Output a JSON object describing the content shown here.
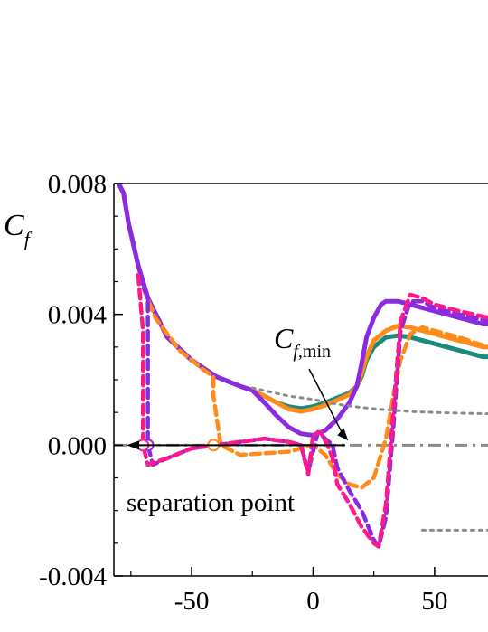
{
  "chart_data": {
    "type": "line",
    "ylabel": {
      "main": "C",
      "sub": "f"
    },
    "xlim": [
      -82,
      72
    ],
    "ylim": [
      -0.004,
      0.008
    ],
    "x_ticks": [
      "-50",
      "0",
      "50"
    ],
    "x_tick_values": [
      -50,
      0,
      50
    ],
    "y_ticks": [
      "0.008",
      "0.004",
      "0.000",
      "-0.004"
    ],
    "y_tick_values": [
      0.008,
      0.004,
      0.0,
      -0.004
    ],
    "annotations": {
      "cf_min": {
        "main": "C",
        "sub_italic": "f",
        "sub": ",min",
        "x": 10,
        "y": 0.0
      },
      "separation": {
        "text": "separation point",
        "x": -68,
        "y": 0.0
      }
    },
    "reference_lines": [
      {
        "name": "zero",
        "style": "dashdot",
        "color": "#8a8a8a",
        "x": [
          -82,
          72
        ],
        "y": [
          0.0,
          0.0
        ]
      }
    ],
    "series": [
      {
        "style": "solid",
        "color": "#1a8a7f",
        "x": [
          -80,
          -78,
          -76,
          -72,
          -68,
          -60,
          -50,
          -40,
          -30,
          -25,
          -20,
          -15,
          -10,
          -5,
          0,
          5,
          10,
          15,
          18,
          20,
          22,
          25,
          30,
          35,
          40,
          45,
          50,
          55,
          60,
          65,
          70,
          72
        ],
        "y": [
          0.008,
          0.0077,
          0.0068,
          0.0055,
          0.0045,
          0.0033,
          0.0026,
          0.0021,
          0.0018,
          0.00168,
          0.0015,
          0.0013,
          0.00118,
          0.00112,
          0.00118,
          0.0013,
          0.00145,
          0.0016,
          0.0018,
          0.0021,
          0.0026,
          0.003,
          0.0033,
          0.00335,
          0.0033,
          0.0032,
          0.0031,
          0.003,
          0.0029,
          0.0028,
          0.0027,
          0.0027
        ]
      },
      {
        "style": "solid",
        "color": "#ff8c1a",
        "x": [
          -80,
          -78,
          -76,
          -72,
          -68,
          -60,
          -50,
          -40,
          -30,
          -25,
          -20,
          -15,
          -10,
          -5,
          0,
          5,
          10,
          15,
          18,
          20,
          22,
          25,
          30,
          35,
          40,
          45,
          50,
          55,
          60,
          65,
          70,
          72
        ],
        "y": [
          0.008,
          0.0077,
          0.0068,
          0.0055,
          0.0045,
          0.0033,
          0.0026,
          0.0021,
          0.0018,
          0.00168,
          0.0015,
          0.0013,
          0.0011,
          0.00103,
          0.0011,
          0.00122,
          0.00138,
          0.00155,
          0.0018,
          0.0022,
          0.0027,
          0.0032,
          0.0035,
          0.00365,
          0.0036,
          0.0035,
          0.0034,
          0.0033,
          0.0032,
          0.0031,
          0.003,
          0.003
        ]
      },
      {
        "style": "solid",
        "color": "#8a2be2",
        "x": [
          -80,
          -78,
          -76,
          -72,
          -68,
          -60,
          -50,
          -40,
          -30,
          -25,
          -20,
          -15,
          -10,
          -5,
          0,
          5,
          10,
          15,
          18,
          20,
          22,
          25,
          28,
          30,
          35,
          40,
          45,
          50,
          55,
          60,
          65,
          70,
          72
        ],
        "y": [
          0.008,
          0.0077,
          0.0068,
          0.0055,
          0.0045,
          0.0033,
          0.0026,
          0.0021,
          0.0018,
          0.00168,
          0.0013,
          0.0009,
          0.00055,
          0.00035,
          0.0003,
          0.00045,
          0.0008,
          0.0013,
          0.0018,
          0.0025,
          0.0033,
          0.0039,
          0.0043,
          0.0044,
          0.0044,
          0.0043,
          0.0042,
          0.0041,
          0.004,
          0.0039,
          0.0038,
          0.0037,
          0.0037
        ]
      },
      {
        "style": "dashed",
        "color": "#ff8c1a",
        "x": [
          -72,
          -65,
          -55,
          -45,
          -41,
          -41,
          -38,
          -30,
          -20,
          -10,
          0,
          5,
          10,
          15,
          20,
          25,
          30,
          33,
          36,
          40,
          45,
          50,
          60,
          72
        ],
        "y": [
          0.0052,
          0.0039,
          0.0029,
          0.0023,
          0.0021,
          0.0015,
          0.0,
          -0.0003,
          -0.00025,
          -0.0002,
          0.0,
          -0.0003,
          -0.0009,
          -0.0012,
          -0.0013,
          -0.001,
          0.0002,
          0.0015,
          0.0026,
          0.0034,
          0.0036,
          0.0035,
          0.0033,
          0.003
        ]
      },
      {
        "style": "dashed",
        "color": "#8a2be2",
        "x": [
          -72,
          -68,
          -68,
          -66,
          -60,
          -50,
          -40,
          -30,
          -20,
          -10,
          -5,
          -2,
          2,
          5,
          8,
          10,
          15,
          20,
          25,
          27,
          30,
          33,
          36,
          40,
          45,
          50,
          60,
          72
        ],
        "y": [
          0.0052,
          0.0045,
          0.0,
          -0.0006,
          -0.0004,
          -0.0001,
          0.0,
          0.0001,
          0.0002,
          0.0001,
          0.0,
          -0.0008,
          0.0004,
          0.0002,
          0.0,
          -0.0007,
          -0.0014,
          -0.002,
          -0.0029,
          -0.0031,
          -0.0022,
          0.0005,
          0.0035,
          0.0044,
          0.0044,
          0.0042,
          0.004,
          0.0038
        ]
      },
      {
        "style": "dashed",
        "color": "#ff1a8c",
        "x": [
          -72,
          -70,
          -70,
          -68,
          -60,
          -50,
          -40,
          -30,
          -20,
          -10,
          -5,
          -2,
          0,
          3,
          6,
          8,
          10,
          15,
          20,
          25,
          27,
          30,
          33,
          36,
          40,
          45,
          50,
          60,
          72
        ],
        "y": [
          0.0052,
          0.0035,
          0.0,
          -0.0006,
          -0.0004,
          -0.0001,
          0.0,
          0.0001,
          0.0002,
          0.0001,
          0.0,
          -0.0009,
          0.0003,
          0.0004,
          0.0,
          -0.0004,
          -0.0012,
          -0.0018,
          -0.0025,
          -0.003,
          -0.0031,
          -0.0018,
          0.001,
          0.0038,
          0.0046,
          0.0045,
          0.0043,
          0.0041,
          0.0039
        ]
      },
      {
        "style": "dotted",
        "color": "#8a8a8a",
        "x": [
          -25,
          -10,
          0,
          10,
          20,
          30,
          40,
          50,
          60,
          72
        ],
        "y": [
          0.00175,
          0.0015,
          0.0014,
          0.00125,
          0.00115,
          0.00108,
          0.00103,
          0.001,
          0.00098,
          0.00096
        ]
      },
      {
        "style": "dotted",
        "color": "#8a8a8a",
        "x": [
          45,
          55,
          65,
          72
        ],
        "y": [
          -0.0026,
          -0.0026,
          -0.0026,
          -0.0026
        ]
      }
    ],
    "markers": [
      {
        "x": -41,
        "y": 0.0,
        "color": "#ff8c1a"
      },
      {
        "x": -68,
        "y": 0.0,
        "color": "#8a2be2"
      },
      {
        "x": -70,
        "y": 0.0,
        "color": "#ff1a8c"
      }
    ],
    "grid": false,
    "legend": "none"
  }
}
